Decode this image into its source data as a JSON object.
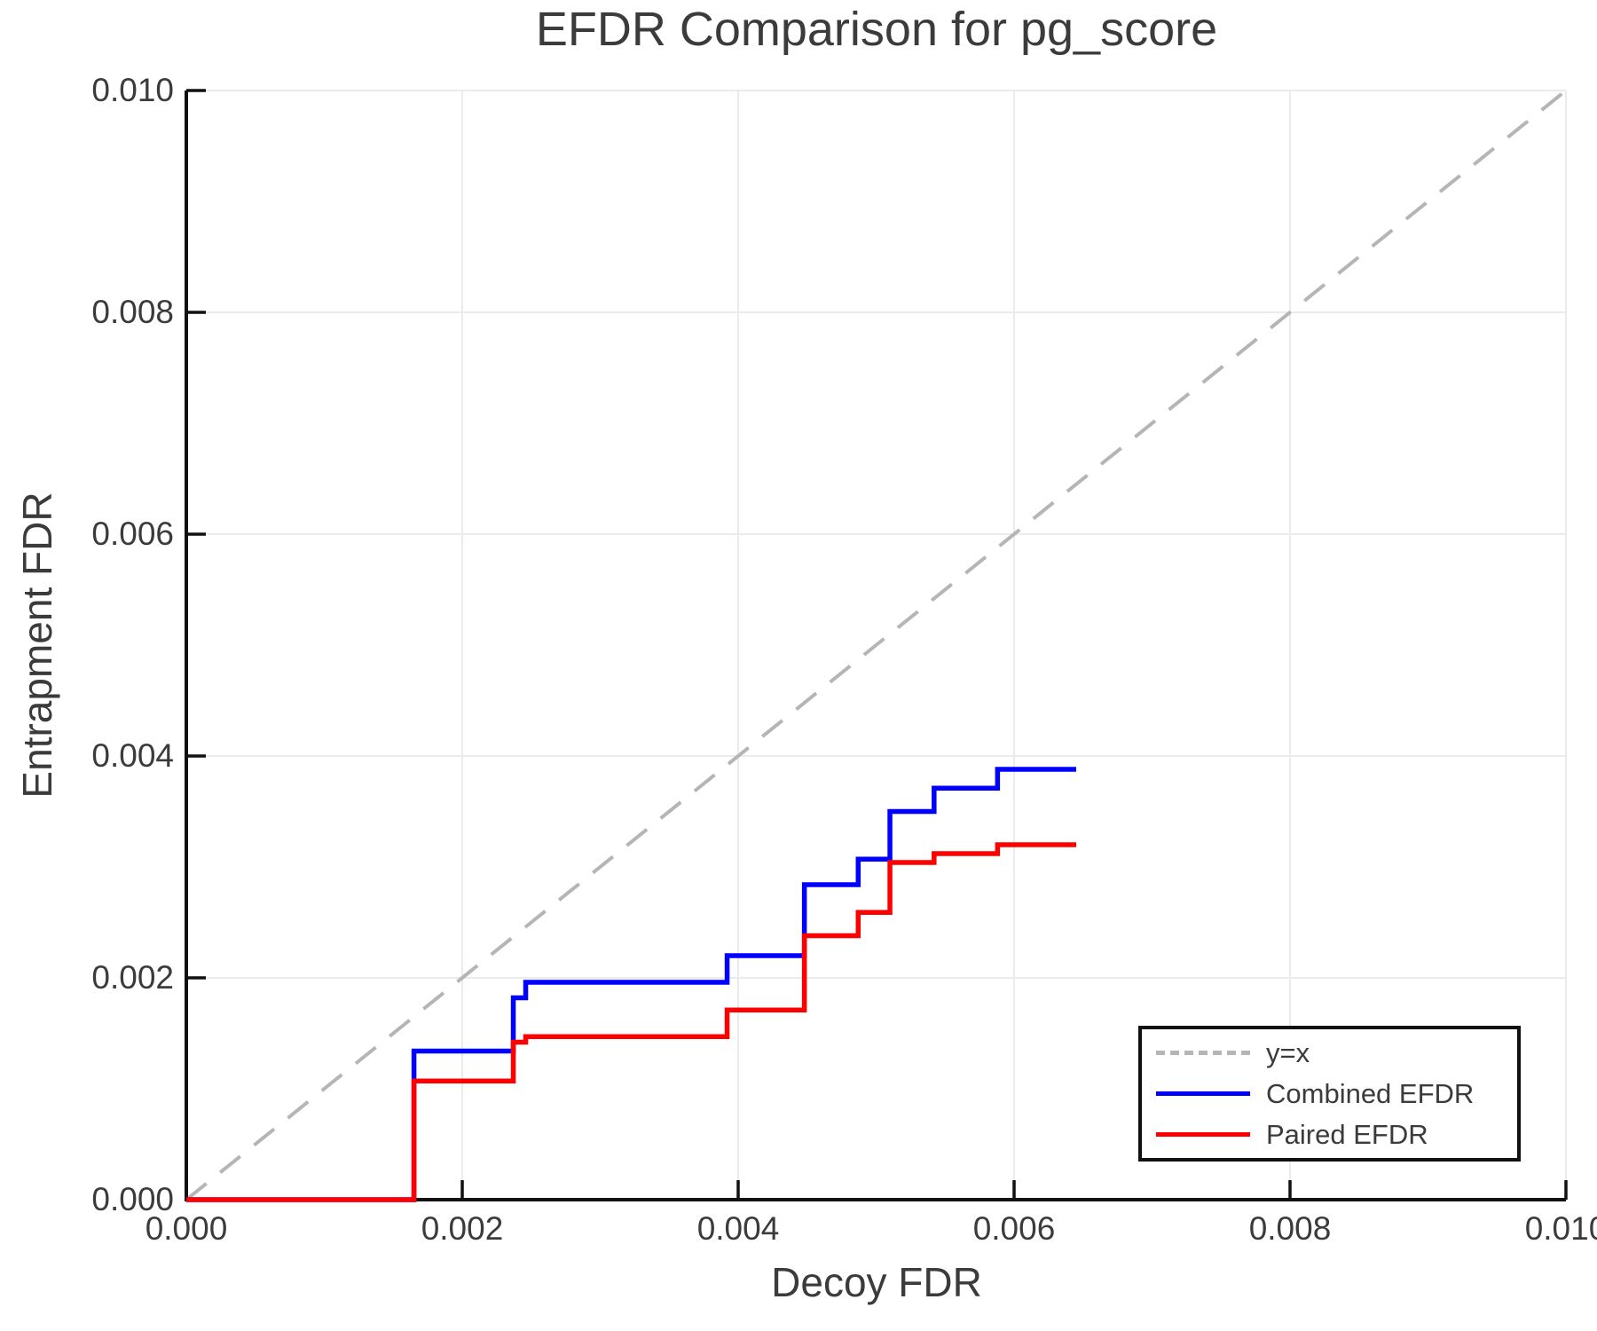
{
  "title": "EFDR Comparison for pg_score",
  "axes": {
    "x_label": "Decoy FDR",
    "y_label": "Entrapment FDR",
    "x_ticks": [
      "0.000",
      "0.002",
      "0.004",
      "0.006",
      "0.008",
      "0.010"
    ],
    "y_ticks": [
      "0.000",
      "0.002",
      "0.004",
      "0.006",
      "0.008",
      "0.010"
    ]
  },
  "legend": {
    "position": "lower right",
    "items": [
      {
        "label": "y=x",
        "color": "#b5b5b5",
        "style": "dashed"
      },
      {
        "label": "Combined EFDR",
        "color": "#0000ff",
        "style": "solid"
      },
      {
        "label": "Paired EFDR",
        "color": "#ff0000",
        "style": "solid"
      }
    ]
  },
  "chart_data": {
    "type": "line",
    "subtype": "step-post",
    "title": "EFDR Comparison for pg_score",
    "xlabel": "Decoy FDR",
    "ylabel": "Entrapment FDR",
    "xlim": [
      0.0,
      0.01
    ],
    "ylim": [
      0.0,
      0.01
    ],
    "x_ticks": [
      0.0,
      0.002,
      0.004,
      0.006,
      0.008,
      0.01
    ],
    "y_ticks": [
      0.0,
      0.002,
      0.004,
      0.006,
      0.008,
      0.01
    ],
    "grid": true,
    "legend_position": "lower right",
    "reference": {
      "name": "y=x",
      "style": "dashed",
      "color": "#b5b5b5",
      "x": [
        0.0,
        0.01
      ],
      "y": [
        0.0,
        0.01
      ]
    },
    "series": [
      {
        "name": "Combined EFDR",
        "color": "#0000ff",
        "step": "post",
        "x": [
          0.0,
          0.00165,
          0.00237,
          0.00246,
          0.00392,
          0.00448,
          0.00487,
          0.0051,
          0.00542,
          0.00588,
          0.00645
        ],
        "y": [
          0.0,
          0.00134,
          0.00182,
          0.00196,
          0.0022,
          0.00284,
          0.00307,
          0.0035,
          0.00371,
          0.00388,
          0.00388
        ]
      },
      {
        "name": "Paired EFDR",
        "color": "#ff0000",
        "step": "post",
        "x": [
          0.0,
          0.00165,
          0.00237,
          0.00246,
          0.00392,
          0.00448,
          0.00487,
          0.0051,
          0.00542,
          0.00588,
          0.00645
        ],
        "y": [
          0.0,
          0.00107,
          0.00142,
          0.00147,
          0.00171,
          0.00238,
          0.00259,
          0.00304,
          0.00312,
          0.0032,
          0.0032
        ]
      }
    ],
    "style": {
      "grid_color": "#ebebeb",
      "spine_color": "#111111",
      "tick_color": "#111111",
      "text_color": "#3b3b3b",
      "background": "#ffffff"
    }
  }
}
